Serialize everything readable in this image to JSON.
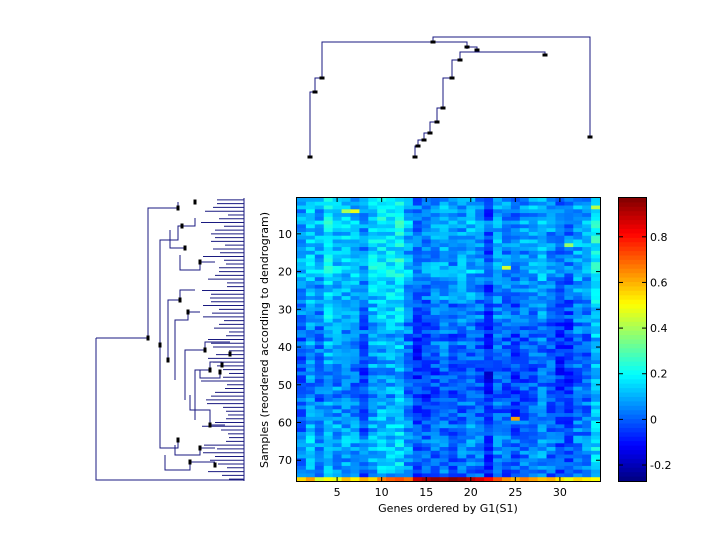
{
  "chart_data": {
    "type": "heatmap",
    "xlabel": "Genes ordered by G1(S1)",
    "ylabel": "Samples (reordered according to dendrogram)",
    "x_ticks": [
      5,
      10,
      15,
      20,
      25,
      30
    ],
    "y_ticks": [
      10,
      20,
      30,
      40,
      50,
      60,
      70
    ],
    "n_genes": 34,
    "n_samples": 75,
    "colorbar": {
      "ticks": [
        -0.2,
        0,
        0.2,
        0.4,
        0.6,
        0.8
      ],
      "range": [
        -0.27,
        0.97
      ],
      "colormap": "jet"
    },
    "gene_means": [
      0.04,
      0.1,
      0.05,
      0.13,
      0.09,
      0.08,
      0.07,
      0.02,
      0.11,
      0.14,
      0.12,
      0.15,
      0.06,
      -0.02,
      0.0,
      0.03,
      0.05,
      0.02,
      0.04,
      0.05,
      0.03,
      -0.05,
      0.04,
      0.02,
      0.0,
      0.03,
      0.04,
      0.07,
      0.03,
      -0.01,
      -0.02,
      0.05,
      0.04,
      0.15
    ],
    "sample_offsets": [
      0.02,
      0.04,
      0.05,
      0.03,
      0.02,
      0.04,
      0.06,
      0.05,
      0.04,
      0.03,
      0.05,
      0.06,
      0.04,
      0.03,
      0.03,
      0.04,
      0.05,
      0.04,
      0.06,
      0.07,
      0.05,
      0.04,
      0.03,
      0.02,
      0.02,
      0.03,
      0.02,
      0.0,
      -0.01,
      0.01,
      0.0,
      0.01,
      0.0,
      -0.03,
      -0.02,
      -0.01,
      -0.03,
      -0.04,
      -0.02,
      -0.03,
      -0.04,
      -0.03,
      -0.05,
      -0.04,
      -0.03,
      -0.05,
      -0.06,
      -0.05,
      -0.04,
      -0.05,
      -0.03,
      -0.04,
      -0.05,
      -0.04,
      -0.02,
      -0.03,
      -0.04,
      -0.03,
      -0.02,
      -0.01,
      0.0,
      -0.02,
      -0.01,
      0.01,
      0.02,
      0.0,
      0.01,
      0.0,
      -0.01,
      -0.02,
      -0.01,
      -0.02,
      -0.03,
      -0.04,
      -0.05
    ],
    "last_row": [
      0.55,
      0.62,
      0.45,
      0.5,
      0.48,
      0.58,
      0.52,
      0.6,
      0.55,
      0.66,
      0.7,
      0.72,
      0.68,
      0.88,
      0.92,
      0.95,
      0.93,
      0.96,
      0.94,
      0.9,
      0.86,
      0.8,
      0.72,
      0.64,
      0.6,
      0.66,
      0.62,
      0.58,
      0.6,
      0.54,
      0.48,
      0.55,
      0.52,
      0.5
    ],
    "highlight_cells": [
      {
        "gene": 7,
        "sample": 4,
        "value": 0.48
      },
      {
        "gene": 24,
        "sample": 19,
        "value": 0.45
      },
      {
        "gene": 25,
        "sample": 59,
        "value": 0.62
      },
      {
        "gene": 34,
        "sample": 3,
        "value": 0.42
      },
      {
        "gene": 31,
        "sample": 13,
        "value": 0.38
      },
      {
        "gene": 6,
        "sample": 4,
        "value": 0.4
      }
    ]
  },
  "colors": {
    "dendrogram": "#1a1a80",
    "axis": "#000000"
  }
}
